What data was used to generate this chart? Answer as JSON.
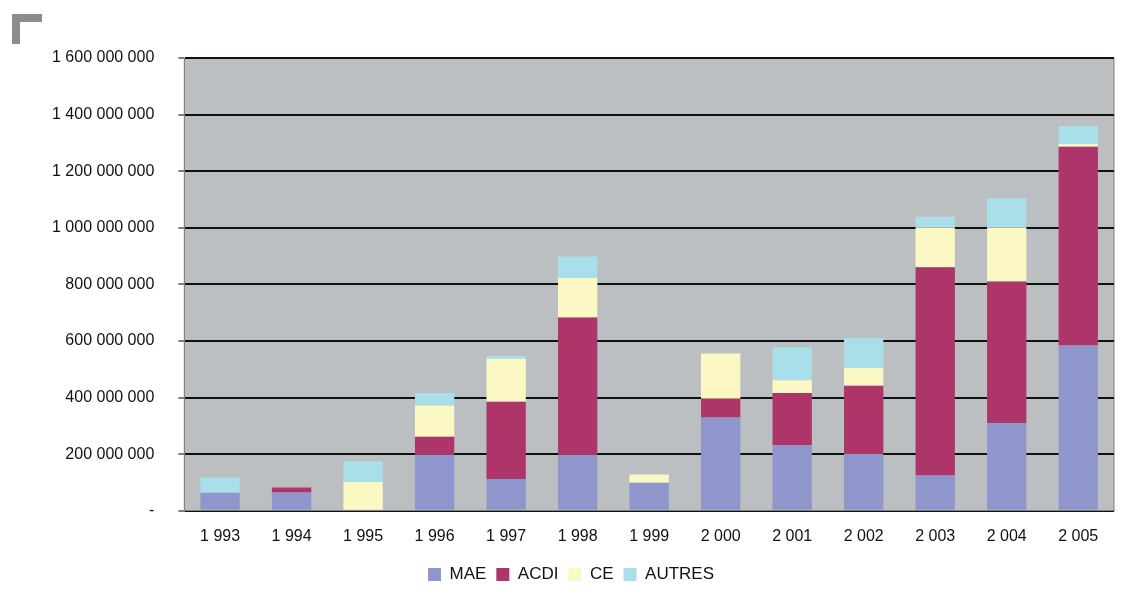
{
  "chart_data": {
    "type": "bar",
    "stacked": true,
    "categories": [
      "1 993",
      "1 994",
      "1 995",
      "1 996",
      "1 997",
      "1 998",
      "1 999",
      "2 000",
      "2 001",
      "2 002",
      "2 003",
      "2 004",
      "2 005"
    ],
    "series": [
      {
        "name": "MAE",
        "color": "#8e96cc",
        "values": [
          64000000,
          65000000,
          0,
          198000000,
          112000000,
          198000000,
          99000000,
          330000000,
          232000000,
          201000000,
          125000000,
          309000000,
          584000000
        ]
      },
      {
        "name": "ACDI",
        "color": "#ad3569",
        "values": [
          0,
          17000000,
          0,
          64000000,
          273000000,
          485000000,
          0,
          66000000,
          184000000,
          241000000,
          736000000,
          501000000,
          702000000
        ]
      },
      {
        "name": "CE",
        "color": "#fbf8c4",
        "values": [
          0,
          0,
          102000000,
          110000000,
          152000000,
          140000000,
          29000000,
          160000000,
          45000000,
          63000000,
          139000000,
          190000000,
          10000000
        ]
      },
      {
        "name": "AUTRES",
        "color": "#a9dfe8",
        "values": [
          54000000,
          0,
          73000000,
          44000000,
          10000000,
          76000000,
          0,
          0,
          117000000,
          106000000,
          39000000,
          104000000,
          64000000
        ]
      }
    ],
    "ylim": [
      0,
      1600000000
    ],
    "yticks": [
      {
        "value": 0,
        "label": "-"
      },
      {
        "value": 200000000,
        "label": "200 000 000"
      },
      {
        "value": 400000000,
        "label": "400 000 000"
      },
      {
        "value": 600000000,
        "label": "600 000 000"
      },
      {
        "value": 800000000,
        "label": "800 000 000"
      },
      {
        "value": 1000000000,
        "label": "1 000 000 000"
      },
      {
        "value": 1200000000,
        "label": "1 200 000 000"
      },
      {
        "value": 1400000000,
        "label": "1 400 000 000"
      },
      {
        "value": 1600000000,
        "label": "1 600 000 000"
      }
    ],
    "grid": "y",
    "legend": "bottom"
  }
}
